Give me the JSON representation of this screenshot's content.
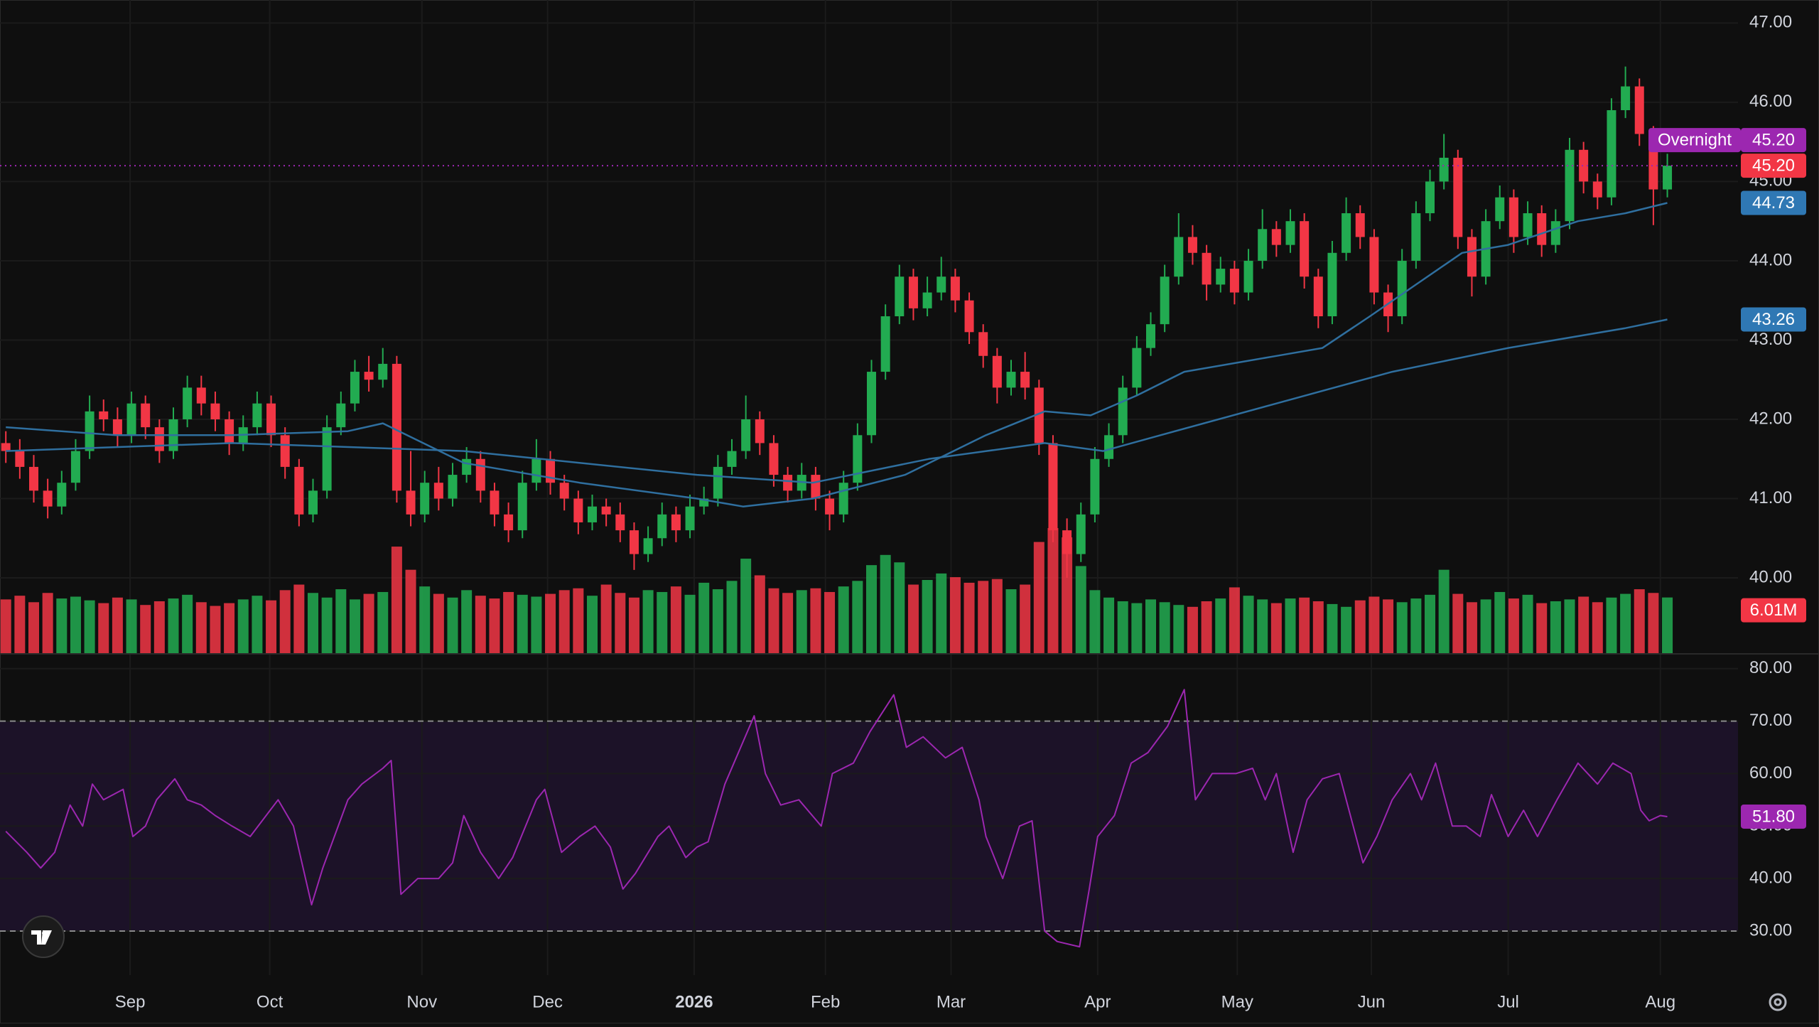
{
  "chart_data": {
    "type": "candlestick",
    "up_color": "#22ab51",
    "down_color": "#f23645",
    "ylim": [
      39.05,
      47.29
    ],
    "yticks": [
      {
        "value": 40,
        "label": "40.00"
      },
      {
        "value": 41,
        "label": "41.00"
      },
      {
        "value": 42,
        "label": "42.00"
      },
      {
        "value": 43,
        "label": "43.00"
      },
      {
        "value": 44,
        "label": "44.00"
      },
      {
        "value": 45,
        "label": "45.00"
      },
      {
        "value": 46,
        "label": "46.00"
      },
      {
        "value": 47,
        "label": "47.00"
      }
    ],
    "xticks": [
      {
        "value": 8.9,
        "label": "Sep"
      },
      {
        "value": 18.9,
        "label": "Oct"
      },
      {
        "value": 29.8,
        "label": "Nov"
      },
      {
        "value": 38.8,
        "label": "Dec"
      },
      {
        "value": 49.3,
        "label": "2026"
      },
      {
        "value": 58.7,
        "label": "Feb"
      },
      {
        "value": 67.7,
        "label": "Mar"
      },
      {
        "value": 78.2,
        "label": "Apr"
      },
      {
        "value": 88.2,
        "label": "May"
      },
      {
        "value": 97.8,
        "label": "Jun"
      },
      {
        "value": 107.6,
        "label": "Jul"
      },
      {
        "value": 118.5,
        "label": "Aug"
      }
    ],
    "candles": {
      "open": [
        41.7,
        41.6,
        41.4,
        41.1,
        40.9,
        41.2,
        41.6,
        42.1,
        42.0,
        41.8,
        42.2,
        41.9,
        41.6,
        42.0,
        42.4,
        42.2,
        42.0,
        41.7,
        41.9,
        42.2,
        41.8,
        41.4,
        40.8,
        41.1,
        41.9,
        42.2,
        42.6,
        42.5,
        42.7,
        41.1,
        40.8,
        41.2,
        41.0,
        41.3,
        41.5,
        41.1,
        40.8,
        40.6,
        41.2,
        41.5,
        41.2,
        41.0,
        40.7,
        40.9,
        40.8,
        40.6,
        40.3,
        40.5,
        40.8,
        40.6,
        40.9,
        41.0,
        41.4,
        41.6,
        42.0,
        41.7,
        41.3,
        41.1,
        41.3,
        41.0,
        40.8,
        41.2,
        41.8,
        42.6,
        43.3,
        43.8,
        43.4,
        43.6,
        43.8,
        43.5,
        43.1,
        42.8,
        42.4,
        42.6,
        42.4,
        41.7,
        40.6,
        40.3,
        40.8,
        41.5,
        41.8,
        42.4,
        42.9,
        43.2,
        43.8,
        44.3,
        44.1,
        43.7,
        43.9,
        43.6,
        44.0,
        44.4,
        44.2,
        44.5,
        43.8,
        43.3,
        44.1,
        44.6,
        44.3,
        43.6,
        43.3,
        44.0,
        44.6,
        45.0,
        45.3,
        44.3,
        43.8,
        44.5,
        44.8,
        44.3,
        44.6,
        44.2,
        44.5,
        45.4,
        45.0,
        44.8,
        45.9,
        46.2,
        45.6,
        44.9
      ],
      "high": [
        41.85,
        41.75,
        41.55,
        41.25,
        41.35,
        41.75,
        42.3,
        42.25,
        42.15,
        42.35,
        42.3,
        42.0,
        42.15,
        42.55,
        42.55,
        42.35,
        42.1,
        42.05,
        42.35,
        42.3,
        41.9,
        41.5,
        41.25,
        42.05,
        42.35,
        42.75,
        42.8,
        42.9,
        42.8,
        41.6,
        41.35,
        41.4,
        41.45,
        41.65,
        41.6,
        41.2,
        40.95,
        41.35,
        41.75,
        41.6,
        41.3,
        41.1,
        41.05,
        41.0,
        40.95,
        40.7,
        40.65,
        40.95,
        40.9,
        41.05,
        41.15,
        41.55,
        41.75,
        42.3,
        42.1,
        41.8,
        41.4,
        41.45,
        41.4,
        41.1,
        41.35,
        41.95,
        42.75,
        43.45,
        43.95,
        43.9,
        43.8,
        44.05,
        43.9,
        43.6,
        43.2,
        42.9,
        42.75,
        42.85,
        42.5,
        41.8,
        40.75,
        40.95,
        41.65,
        41.95,
        42.55,
        43.05,
        43.35,
        43.95,
        44.6,
        44.45,
        44.2,
        44.05,
        44.0,
        44.15,
        44.65,
        44.5,
        44.65,
        44.6,
        43.9,
        44.25,
        44.8,
        44.7,
        44.4,
        43.7,
        44.15,
        44.75,
        45.15,
        45.6,
        45.4,
        44.4,
        44.65,
        44.95,
        44.9,
        44.75,
        44.7,
        44.65,
        45.55,
        45.5,
        45.1,
        46.05,
        46.45,
        46.3,
        45.7,
        45.35
      ],
      "low": [
        41.45,
        41.25,
        40.95,
        40.75,
        40.8,
        41.1,
        41.5,
        41.85,
        41.65,
        41.7,
        41.75,
        41.45,
        41.5,
        41.9,
        42.05,
        41.85,
        41.55,
        41.6,
        41.8,
        41.65,
        41.25,
        40.65,
        40.7,
        41.0,
        41.8,
        42.1,
        42.35,
        42.4,
        40.95,
        40.65,
        40.7,
        40.85,
        40.9,
        41.2,
        40.95,
        40.65,
        40.45,
        40.5,
        41.1,
        41.05,
        40.85,
        40.55,
        40.6,
        40.65,
        40.45,
        40.1,
        40.2,
        40.4,
        40.45,
        40.5,
        40.8,
        40.9,
        41.3,
        41.5,
        41.55,
        41.15,
        40.95,
        41.0,
        40.85,
        40.6,
        40.7,
        41.1,
        41.7,
        42.5,
        43.2,
        43.25,
        43.3,
        43.5,
        43.35,
        42.95,
        42.65,
        42.2,
        42.3,
        42.25,
        41.55,
        40.45,
        40.0,
        40.2,
        40.7,
        41.4,
        41.7,
        42.3,
        42.8,
        43.1,
        43.7,
        43.95,
        43.5,
        43.6,
        43.45,
        43.5,
        43.9,
        44.05,
        44.1,
        43.65,
        43.15,
        43.2,
        44.0,
        44.15,
        43.45,
        43.1,
        43.2,
        43.9,
        44.5,
        44.9,
        44.15,
        43.55,
        43.7,
        44.4,
        44.1,
        44.2,
        44.05,
        44.1,
        44.4,
        44.85,
        44.65,
        44.7,
        45.8,
        45.45,
        44.45,
        44.8
      ],
      "close": [
        41.6,
        41.4,
        41.1,
        40.9,
        41.2,
        41.6,
        42.1,
        42.0,
        41.8,
        42.2,
        41.9,
        41.6,
        42.0,
        42.4,
        42.2,
        42.0,
        41.7,
        41.9,
        42.2,
        41.8,
        41.4,
        40.8,
        41.1,
        41.9,
        42.2,
        42.6,
        42.5,
        42.7,
        41.1,
        40.8,
        41.2,
        41.0,
        41.3,
        41.5,
        41.1,
        40.8,
        40.6,
        41.2,
        41.5,
        41.2,
        41.0,
        40.7,
        40.9,
        40.8,
        40.6,
        40.3,
        40.5,
        40.8,
        40.6,
        40.9,
        41.0,
        41.4,
        41.6,
        42.0,
        41.7,
        41.3,
        41.1,
        41.3,
        41.0,
        40.8,
        41.2,
        41.8,
        42.6,
        43.3,
        43.8,
        43.4,
        43.6,
        43.8,
        43.5,
        43.1,
        42.8,
        42.4,
        42.6,
        42.4,
        41.7,
        40.6,
        40.3,
        40.8,
        41.5,
        41.8,
        42.4,
        42.9,
        43.2,
        43.8,
        44.3,
        44.1,
        43.7,
        43.9,
        43.6,
        44.0,
        44.4,
        44.2,
        44.5,
        43.8,
        43.3,
        44.1,
        44.6,
        44.3,
        43.6,
        43.3,
        44.0,
        44.6,
        45.0,
        45.3,
        44.3,
        43.8,
        44.5,
        44.8,
        44.3,
        44.6,
        44.2,
        44.5,
        45.4,
        45.0,
        44.8,
        45.9,
        46.2,
        45.6,
        44.9,
        45.2
      ]
    },
    "volume": [
      5.8,
      6.2,
      5.5,
      6.5,
      5.9,
      6.1,
      5.7,
      5.4,
      6.0,
      5.8,
      5.2,
      5.6,
      5.9,
      6.3,
      5.5,
      5.1,
      5.4,
      5.8,
      6.2,
      5.7,
      6.8,
      7.4,
      6.5,
      6.0,
      6.9,
      5.8,
      6.4,
      6.6,
      11.5,
      9.0,
      7.2,
      6.4,
      6.0,
      6.8,
      6.2,
      5.9,
      6.6,
      6.3,
      6.1,
      6.4,
      6.8,
      7.0,
      6.2,
      7.4,
      6.5,
      6.0,
      6.8,
      6.6,
      7.2,
      6.3,
      7.6,
      6.9,
      7.8,
      10.2,
      8.4,
      7.0,
      6.5,
      6.8,
      7.0,
      6.6,
      7.2,
      7.8,
      9.5,
      10.6,
      9.8,
      7.4,
      7.9,
      8.6,
      8.2,
      7.6,
      7.8,
      8.0,
      6.9,
      7.4,
      12.0,
      13.5,
      12.5,
      9.4,
      6.8,
      6.0,
      5.6,
      5.4,
      5.8,
      5.5,
      5.2,
      5.0,
      5.6,
      5.9,
      7.1,
      6.2,
      5.8,
      5.4,
      5.9,
      6.0,
      5.6,
      5.3,
      5.0,
      5.7,
      6.1,
      5.8,
      5.5,
      5.9,
      6.3,
      9.0,
      6.4,
      5.5,
      5.8,
      6.6,
      5.9,
      6.3,
      5.4,
      5.6,
      5.8,
      6.1,
      5.5,
      6.0,
      6.4,
      6.9,
      6.5,
      6.01
    ],
    "volume_label": {
      "value": 6.01,
      "label": "6.01M",
      "color": "#f23645"
    },
    "moving_averages": [
      {
        "color": "#2f6f9f",
        "x": [
          0,
          7.9,
          16.2,
          24.5,
          27.0,
          32.8,
          41.1,
          49.5,
          52.8,
          57.8,
          64.4,
          70.2,
          74.4,
          77.7,
          81.0,
          84.4,
          91.0,
          94.3,
          97.7,
          101.0,
          104.3,
          107.6,
          112.6,
          116.0,
          119
        ],
        "values": [
          41.9,
          41.8,
          41.8,
          41.85,
          41.95,
          41.45,
          41.2,
          41.0,
          40.9,
          41.0,
          41.3,
          41.8,
          42.1,
          42.05,
          42.3,
          42.6,
          42.8,
          42.9,
          43.3,
          43.7,
          44.1,
          44.2,
          44.5,
          44.6,
          44.73
        ]
      },
      {
        "color": "#2f6f9f",
        "x": [
          0,
          16.2,
          32.8,
          49.5,
          57.8,
          66.1,
          74.4,
          78.6,
          82.7,
          91.0,
          99.3,
          107.6,
          116.0,
          119
        ],
        "values": [
          41.6,
          41.7,
          41.6,
          41.3,
          41.2,
          41.5,
          41.7,
          41.6,
          41.8,
          42.2,
          42.6,
          42.9,
          43.15,
          43.26
        ]
      }
    ],
    "price_labels": [
      {
        "name": "Overnight",
        "value": 45.2,
        "label": "45.20",
        "color": "#9c27b0"
      },
      {
        "value": 45.2,
        "label": "45.20",
        "color": "#f23645"
      },
      {
        "value": 44.73,
        "label": "44.73",
        "color": "#2f78b4"
      },
      {
        "value": 43.26,
        "label": "43.26",
        "color": "#2f78b4"
      }
    ],
    "rsi": {
      "color": "#9c27b0",
      "band_color": "#1c1228",
      "ylim": [
        21.6,
        82.4
      ],
      "yticks": [
        {
          "value": 30,
          "label": "30.00"
        },
        {
          "value": 40,
          "label": "40.00"
        },
        {
          "value": 50,
          "label": "50.00"
        },
        {
          "value": 60,
          "label": "60.00"
        },
        {
          "value": 70,
          "label": "70.00"
        },
        {
          "value": 80,
          "label": "80.00"
        }
      ],
      "bands": [
        30,
        70
      ],
      "x": [
        0,
        1.5,
        2.5,
        3.5,
        4.6,
        5.5,
        6.2,
        7,
        8.4,
        9.1,
        10,
        10.8,
        12.1,
        13,
        14,
        15,
        16.2,
        17.5,
        19.5,
        20.6,
        21.9,
        22.7,
        24.5,
        25.5,
        27,
        27.6,
        28.3,
        29.5,
        31,
        32,
        32.8,
        34,
        35.3,
        36.3,
        38,
        38.6,
        39.8,
        41.1,
        42.2,
        43.3,
        44.2,
        45.1,
        46.7,
        47.5,
        48.7,
        49.5,
        50.3,
        51.5,
        53.6,
        54.4,
        55.5,
        56.8,
        58.4,
        59.2,
        60.7,
        61.9,
        63.6,
        64.5,
        65.7,
        67.3,
        68.5,
        69.7,
        70.2,
        71.4,
        72.6,
        73.5,
        74.4,
        75.3,
        76.9,
        77.6,
        78.2,
        79.4,
        80.6,
        81.8,
        83.2,
        84.4,
        85.2,
        86.4,
        88.1,
        89.3,
        90.2,
        91,
        92.2,
        93.2,
        94.3,
        95.5,
        97.2,
        98.2,
        99.3,
        100.6,
        101.4,
        102.4,
        103.6,
        104.6,
        105.6,
        106.4,
        107.6,
        108.7,
        109.7,
        111.1,
        112.6,
        114,
        115.1,
        116.4,
        117.1,
        117.7,
        118.5,
        119
      ],
      "values": [
        49,
        45,
        42,
        45,
        54,
        50,
        58,
        55,
        57,
        48,
        50,
        55,
        59,
        55,
        54,
        52,
        50,
        48,
        55,
        50,
        35,
        42,
        55,
        58,
        61,
        62.5,
        37,
        40,
        40,
        43,
        52,
        45,
        40,
        44,
        55,
        57,
        45,
        48,
        50,
        46,
        38,
        41,
        48,
        50,
        44,
        46,
        47,
        58,
        71,
        60,
        54,
        55,
        50,
        60,
        62,
        68,
        75,
        65,
        67,
        63,
        65,
        55,
        48,
        40,
        50,
        51,
        30,
        28,
        27,
        38,
        48,
        52,
        62,
        64,
        69,
        76,
        55,
        60,
        60,
        61,
        55,
        60,
        45,
        55,
        59,
        60,
        43,
        48,
        55,
        60,
        55,
        62,
        50,
        50,
        48,
        56,
        48,
        53,
        48,
        55,
        62,
        58,
        62,
        60,
        53,
        51,
        52,
        51.8
      ],
      "label": {
        "value": 51.8,
        "label": "51.80"
      }
    }
  }
}
